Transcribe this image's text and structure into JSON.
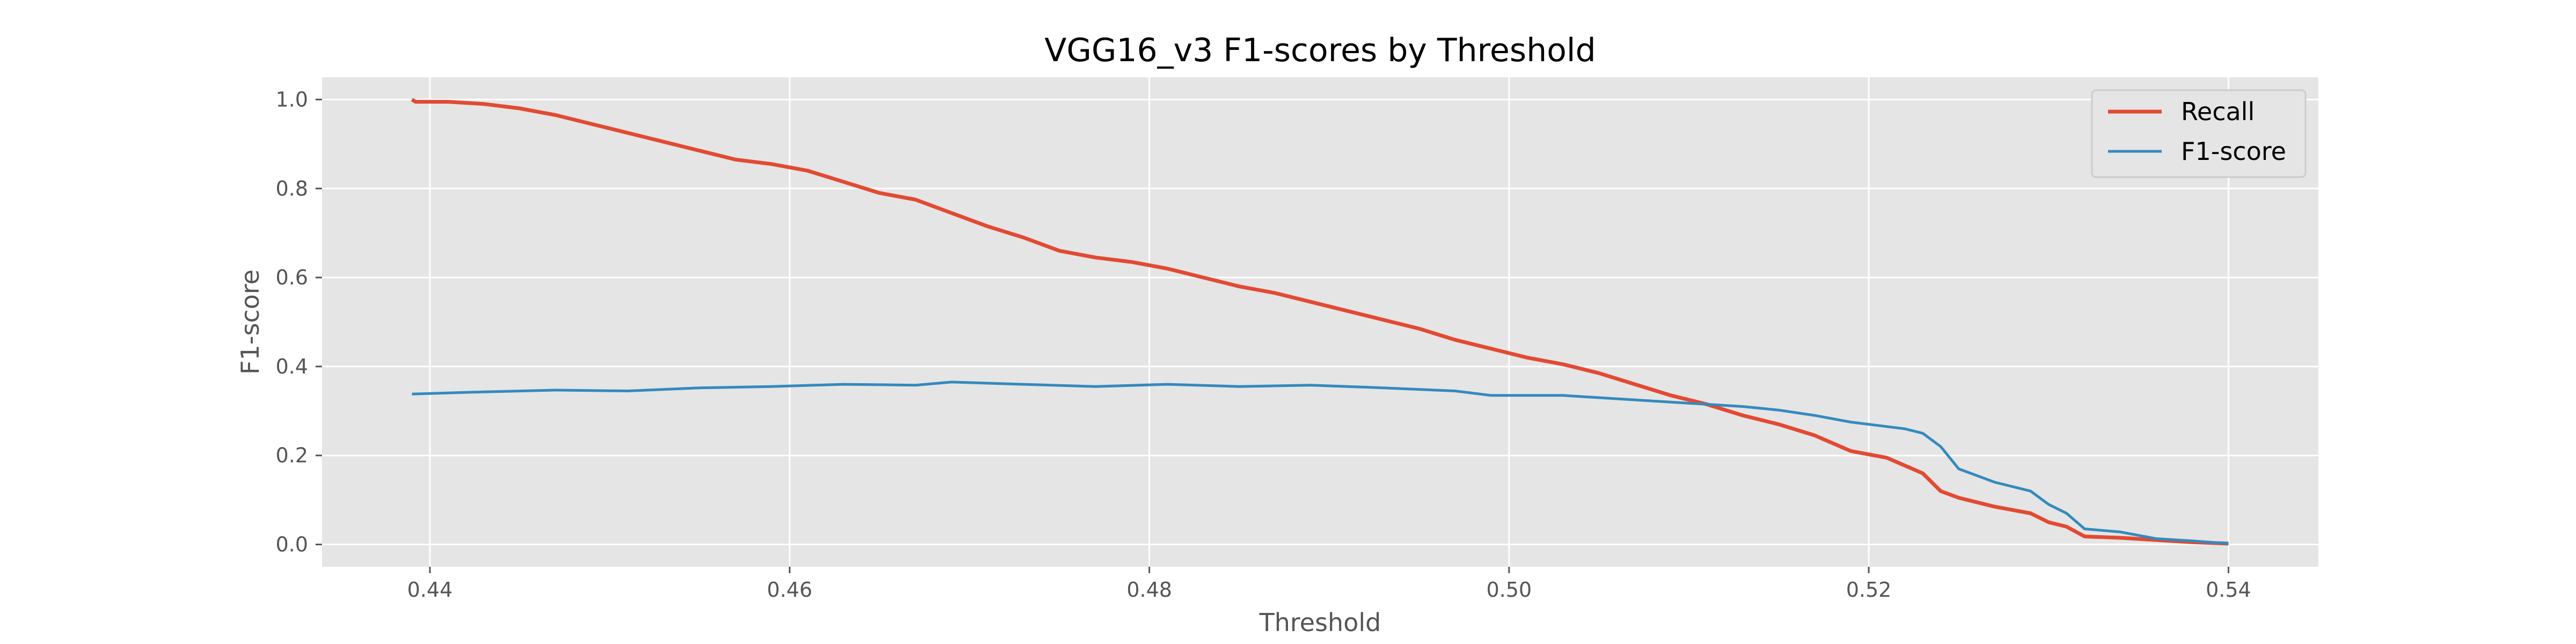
{
  "chart_data": {
    "type": "line",
    "title": "VGG16_v3 F1-scores by Threshold",
    "xlabel": "Threshold",
    "ylabel": "F1-score",
    "xlim": [
      0.434,
      0.545
    ],
    "ylim": [
      -0.05,
      1.05
    ],
    "xticks": [
      0.44,
      0.46,
      0.48,
      0.5,
      0.52,
      0.54
    ],
    "xtick_labels": [
      "0.44",
      "0.46",
      "0.48",
      "0.50",
      "0.52",
      "0.54"
    ],
    "yticks": [
      0.0,
      0.2,
      0.4,
      0.6,
      0.8,
      1.0
    ],
    "ytick_labels": [
      "0.0",
      "0.2",
      "0.4",
      "0.6",
      "0.8",
      "1.0"
    ],
    "grid": true,
    "legend_position": "top-right",
    "background": "#e5e5e5",
    "series": [
      {
        "name": "Recall",
        "color": "#e24a33",
        "x": [
          0.439,
          0.4392,
          0.441,
          0.443,
          0.445,
          0.447,
          0.449,
          0.451,
          0.453,
          0.455,
          0.457,
          0.459,
          0.461,
          0.463,
          0.465,
          0.467,
          0.469,
          0.471,
          0.473,
          0.475,
          0.477,
          0.479,
          0.481,
          0.483,
          0.485,
          0.487,
          0.489,
          0.491,
          0.493,
          0.495,
          0.497,
          0.499,
          0.501,
          0.503,
          0.505,
          0.507,
          0.509,
          0.511,
          0.513,
          0.515,
          0.517,
          0.519,
          0.521,
          0.523,
          0.524,
          0.525,
          0.527,
          0.529,
          0.53,
          0.531,
          0.532,
          0.534,
          0.536,
          0.538,
          0.54
        ],
        "y": [
          1.0,
          0.995,
          0.995,
          0.99,
          0.98,
          0.965,
          0.945,
          0.925,
          0.905,
          0.885,
          0.865,
          0.855,
          0.84,
          0.815,
          0.79,
          0.775,
          0.745,
          0.715,
          0.69,
          0.66,
          0.645,
          0.635,
          0.62,
          0.6,
          0.58,
          0.565,
          0.545,
          0.525,
          0.505,
          0.485,
          0.46,
          0.44,
          0.42,
          0.405,
          0.385,
          0.36,
          0.335,
          0.315,
          0.29,
          0.27,
          0.245,
          0.21,
          0.195,
          0.16,
          0.12,
          0.105,
          0.085,
          0.07,
          0.05,
          0.04,
          0.018,
          0.015,
          0.01,
          0.005,
          0.002
        ]
      },
      {
        "name": "F1-score",
        "color": "#348abd",
        "x": [
          0.439,
          0.443,
          0.447,
          0.451,
          0.455,
          0.459,
          0.463,
          0.467,
          0.469,
          0.473,
          0.477,
          0.481,
          0.485,
          0.489,
          0.493,
          0.497,
          0.499,
          0.503,
          0.507,
          0.511,
          0.513,
          0.515,
          0.517,
          0.519,
          0.521,
          0.522,
          0.523,
          0.524,
          0.525,
          0.527,
          0.529,
          0.53,
          0.531,
          0.532,
          0.534,
          0.536,
          0.538,
          0.54
        ],
        "y": [
          0.338,
          0.343,
          0.347,
          0.345,
          0.352,
          0.355,
          0.36,
          0.358,
          0.365,
          0.36,
          0.355,
          0.36,
          0.355,
          0.358,
          0.352,
          0.345,
          0.335,
          0.335,
          0.325,
          0.315,
          0.31,
          0.302,
          0.29,
          0.275,
          0.265,
          0.26,
          0.25,
          0.22,
          0.17,
          0.14,
          0.12,
          0.09,
          0.07,
          0.035,
          0.028,
          0.013,
          0.008,
          0.002
        ]
      }
    ]
  }
}
